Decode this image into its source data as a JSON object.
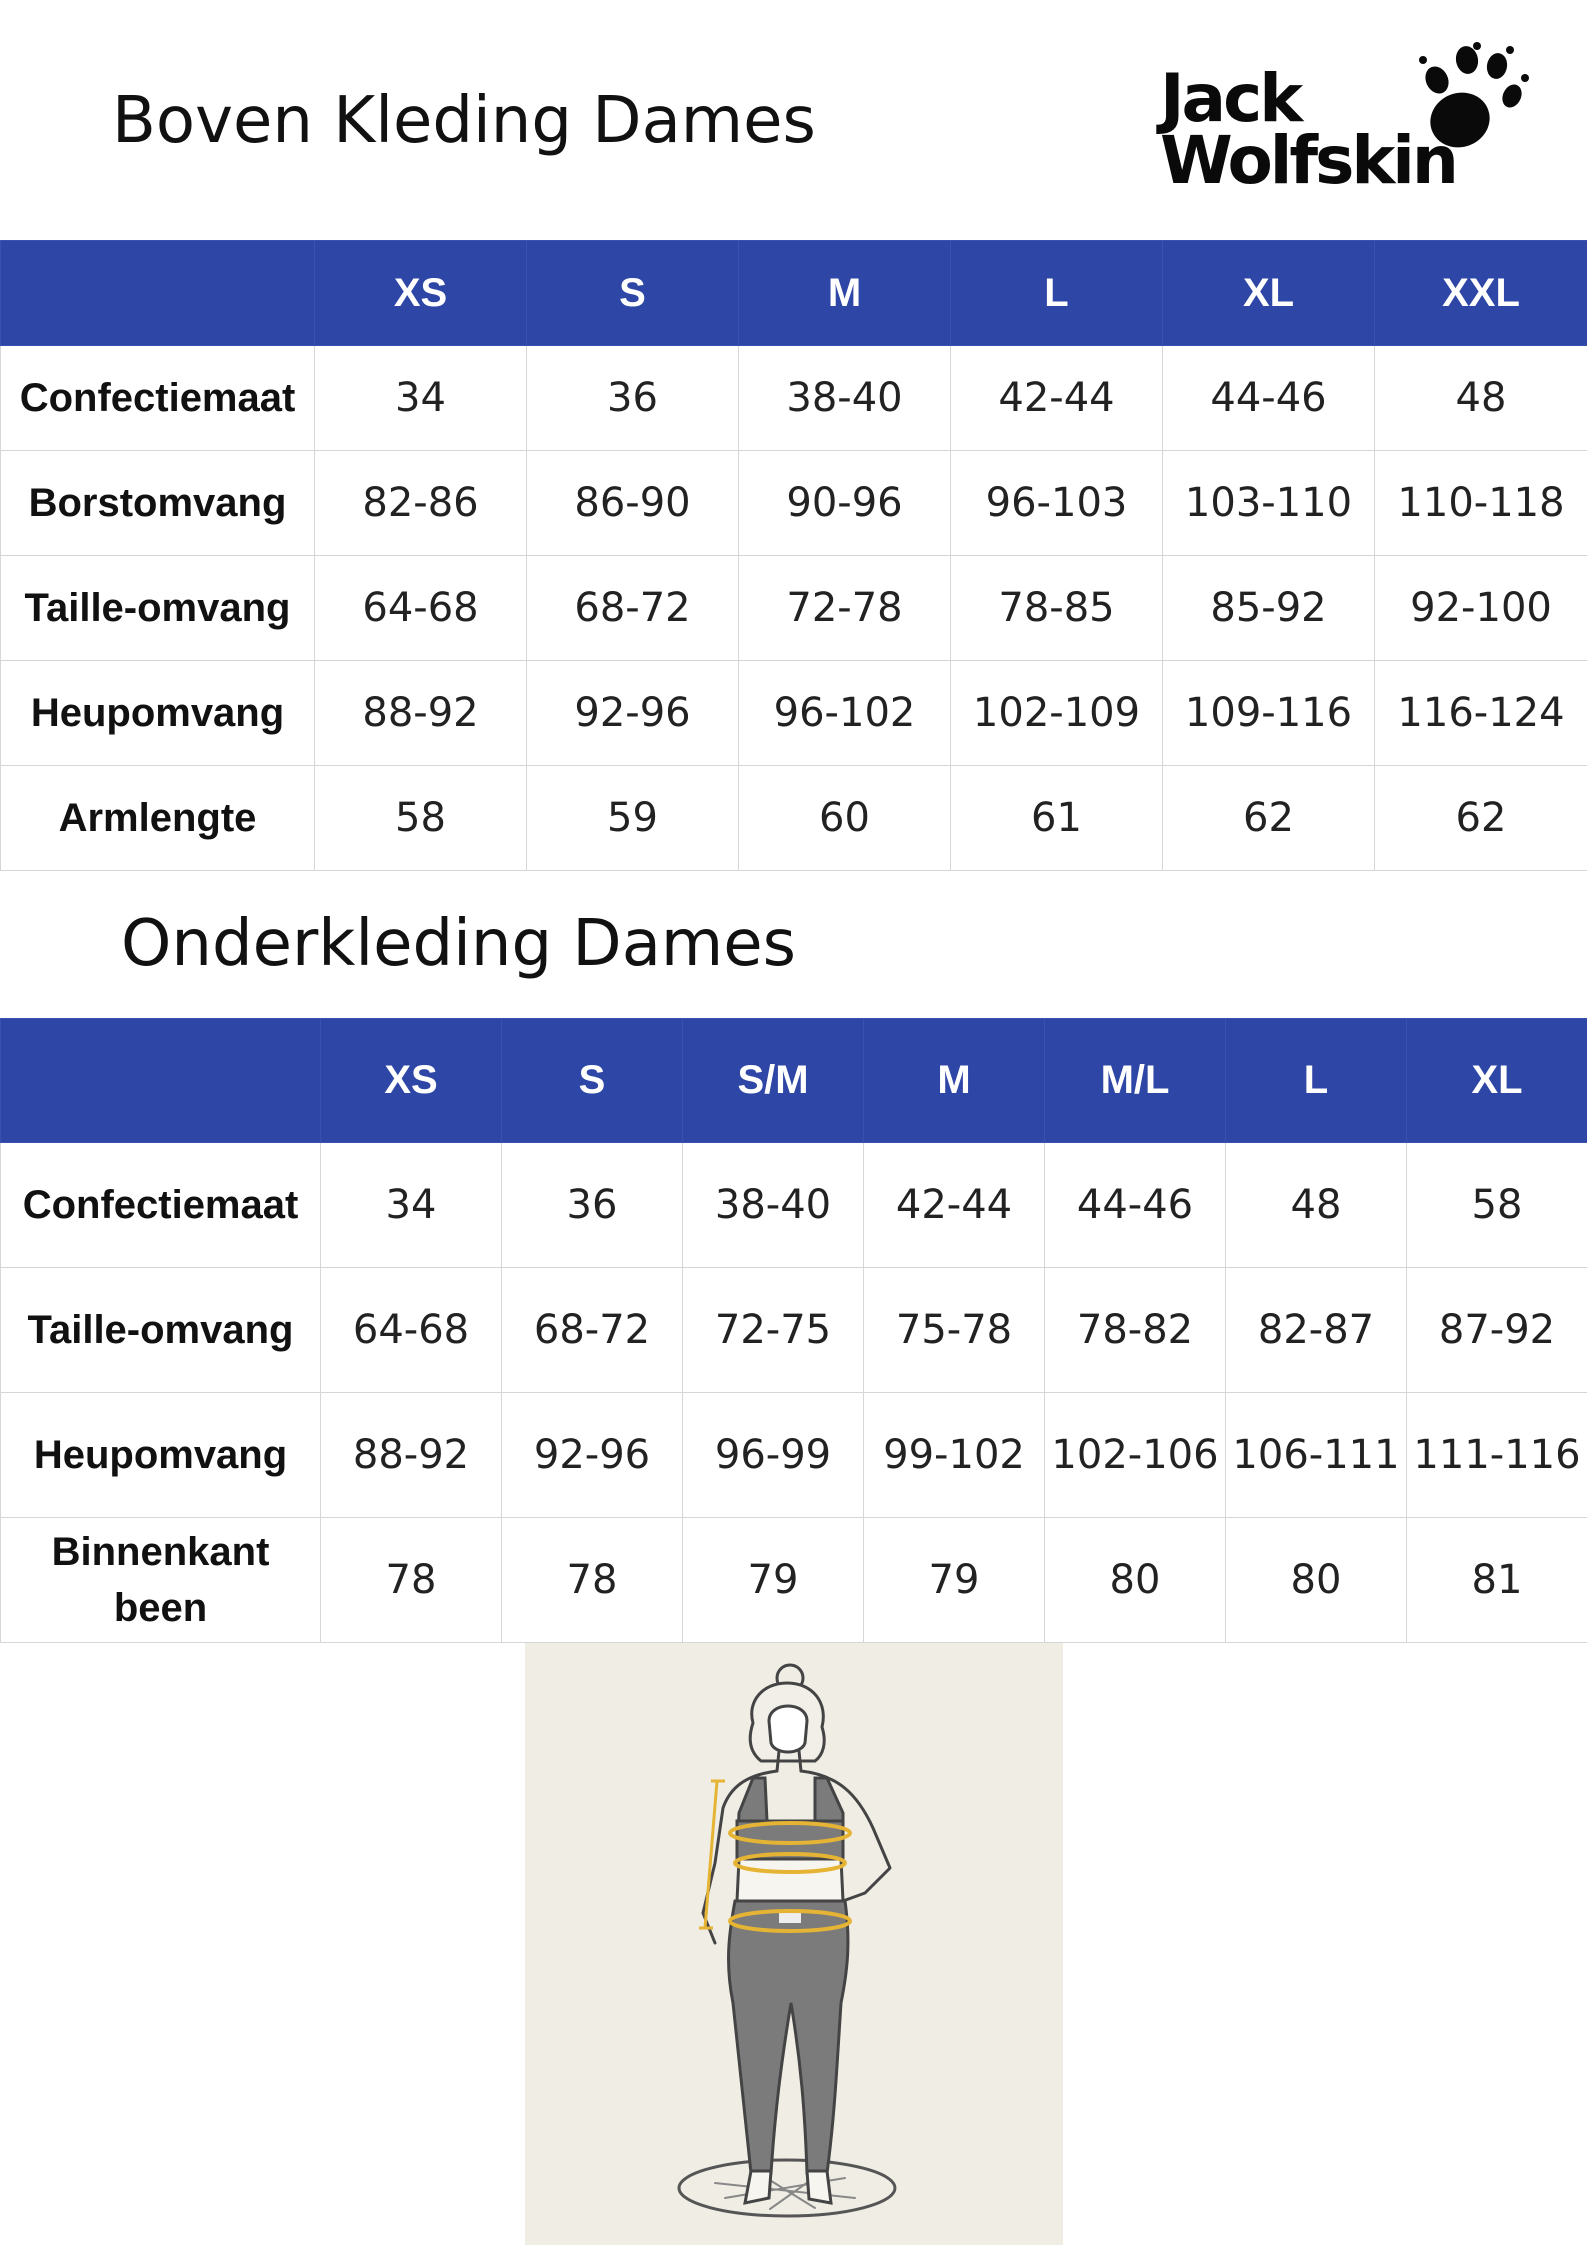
{
  "brand": {
    "logo_text_line1": "Jack",
    "logo_text_line2": "Wolfskin",
    "paw-icon": "paw-icon"
  },
  "colors": {
    "header_bg": "#2e46a5",
    "header_text": "#ffffff",
    "figure_bg": "#efede4",
    "measure_line": "#e6b434"
  },
  "top_section": {
    "title": "Boven Kleding Dames",
    "sizes": [
      "XS",
      "S",
      "M",
      "L",
      "XL",
      "XXL"
    ],
    "rows": [
      {
        "label": "Confectiemaat",
        "values": [
          "34",
          "36",
          "38-40",
          "42-44",
          "44-46",
          "48"
        ]
      },
      {
        "label": "Borstomvang",
        "values": [
          "82-86",
          "86-90",
          "90-96",
          "96-103",
          "103-110",
          "110-118"
        ]
      },
      {
        "label": "Taille-omvang",
        "values": [
          "64-68",
          "68-72",
          "72-78",
          "78-85",
          "85-92",
          "92-100"
        ]
      },
      {
        "label": "Heupomvang",
        "values": [
          "88-92",
          "92-96",
          "96-102",
          "102-109",
          "109-116",
          "116-124"
        ]
      },
      {
        "label": "Armlengte",
        "values": [
          "58",
          "59",
          "60",
          "61",
          "62",
          "62"
        ]
      }
    ]
  },
  "bottom_section": {
    "title": "Onderkleding Dames",
    "sizes": [
      "XS",
      "S",
      "S/M",
      "M",
      "M/L",
      "L",
      "XL"
    ],
    "rows": [
      {
        "label": "Confectiemaat",
        "values": [
          "34",
          "36",
          "38-40",
          "42-44",
          "44-46",
          "48",
          "58"
        ]
      },
      {
        "label": "Taille-omvang",
        "values": [
          "64-68",
          "68-72",
          "72-75",
          "75-78",
          "78-82",
          "82-87",
          "87-92"
        ]
      },
      {
        "label": "Heupomvang",
        "values": [
          "88-92",
          "92-96",
          "96-99",
          "99-102",
          "102-106",
          "106-111",
          "111-116"
        ]
      },
      {
        "label": "Binnenkant been",
        "values": [
          "78",
          "78",
          "79",
          "79",
          "80",
          "80",
          "81"
        ]
      }
    ]
  }
}
